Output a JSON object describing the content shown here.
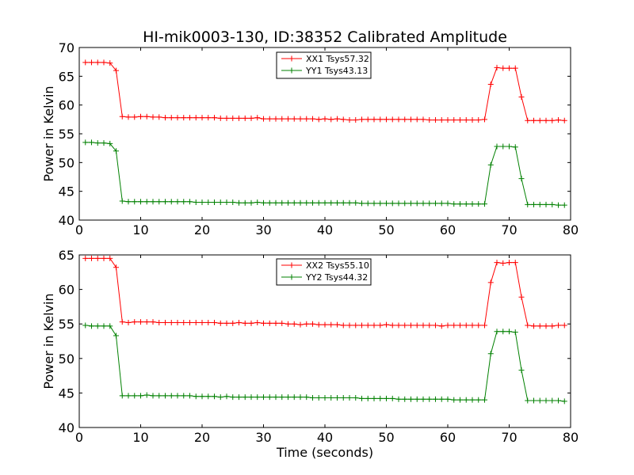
{
  "figure": {
    "title": "HI-mik0003-130, ID:38352 Calibrated Amplitude"
  },
  "chart_data": [
    {
      "type": "line",
      "title": "HI-mik0003-130, ID:38352 Calibrated Amplitude",
      "xlabel": "",
      "ylabel": "Power in Kelvin",
      "xlim": [
        0,
        80
      ],
      "ylim": [
        40,
        70
      ],
      "xticks": [
        0,
        10,
        20,
        30,
        40,
        50,
        60,
        70,
        80
      ],
      "yticks": [
        40,
        45,
        50,
        55,
        60,
        65,
        70
      ],
      "legend_position": "top-center",
      "grid": false,
      "series": [
        {
          "name": "XX1 Tsys57.32",
          "color": "#ff0000",
          "x": [
            1,
            2,
            3,
            4,
            5,
            6,
            7,
            8,
            9,
            10,
            11,
            12,
            13,
            14,
            15,
            16,
            17,
            18,
            19,
            20,
            21,
            22,
            23,
            24,
            25,
            26,
            27,
            28,
            29,
            30,
            31,
            32,
            33,
            34,
            35,
            36,
            37,
            38,
            39,
            40,
            41,
            42,
            43,
            44,
            45,
            46,
            47,
            48,
            49,
            50,
            51,
            52,
            53,
            54,
            55,
            56,
            57,
            58,
            59,
            60,
            61,
            62,
            63,
            64,
            65,
            66,
            67,
            68,
            69,
            70,
            71,
            72,
            73,
            74,
            75,
            76,
            77,
            78,
            79
          ],
          "y": [
            67.4,
            67.4,
            67.4,
            67.4,
            67.3,
            66.0,
            58.0,
            57.9,
            57.9,
            58.0,
            58.0,
            57.9,
            57.9,
            57.8,
            57.8,
            57.8,
            57.8,
            57.8,
            57.8,
            57.8,
            57.8,
            57.8,
            57.7,
            57.7,
            57.7,
            57.7,
            57.7,
            57.7,
            57.8,
            57.6,
            57.6,
            57.6,
            57.6,
            57.6,
            57.6,
            57.6,
            57.6,
            57.6,
            57.5,
            57.6,
            57.5,
            57.6,
            57.5,
            57.4,
            57.4,
            57.5,
            57.5,
            57.5,
            57.5,
            57.5,
            57.5,
            57.5,
            57.5,
            57.5,
            57.5,
            57.5,
            57.4,
            57.4,
            57.4,
            57.4,
            57.4,
            57.4,
            57.4,
            57.4,
            57.4,
            57.5,
            63.6,
            66.5,
            66.4,
            66.4,
            66.4,
            61.4,
            57.3,
            57.3,
            57.3,
            57.3,
            57.3,
            57.4,
            57.3
          ]
        },
        {
          "name": "YY1 Tsys43.13",
          "color": "#008000",
          "x": [
            1,
            2,
            3,
            4,
            5,
            6,
            7,
            8,
            9,
            10,
            11,
            12,
            13,
            14,
            15,
            16,
            17,
            18,
            19,
            20,
            21,
            22,
            23,
            24,
            25,
            26,
            27,
            28,
            29,
            30,
            31,
            32,
            33,
            34,
            35,
            36,
            37,
            38,
            39,
            40,
            41,
            42,
            43,
            44,
            45,
            46,
            47,
            48,
            49,
            50,
            51,
            52,
            53,
            54,
            55,
            56,
            57,
            58,
            59,
            60,
            61,
            62,
            63,
            64,
            65,
            66,
            67,
            68,
            69,
            70,
            71,
            72,
            73,
            74,
            75,
            76,
            77,
            78,
            79
          ],
          "y": [
            53.5,
            53.5,
            53.4,
            53.4,
            53.3,
            52.0,
            43.3,
            43.2,
            43.2,
            43.2,
            43.2,
            43.2,
            43.2,
            43.2,
            43.2,
            43.2,
            43.2,
            43.2,
            43.1,
            43.1,
            43.1,
            43.1,
            43.1,
            43.1,
            43.1,
            43.0,
            43.0,
            43.0,
            43.1,
            43.0,
            43.0,
            43.0,
            43.0,
            43.0,
            43.0,
            43.0,
            43.0,
            43.0,
            43.0,
            43.0,
            43.0,
            43.0,
            43.0,
            43.0,
            43.0,
            42.9,
            42.9,
            42.9,
            42.9,
            42.9,
            42.9,
            42.9,
            42.9,
            42.9,
            42.9,
            42.9,
            42.9,
            42.9,
            42.9,
            42.9,
            42.8,
            42.8,
            42.8,
            42.8,
            42.8,
            42.8,
            49.6,
            52.8,
            52.8,
            52.8,
            52.7,
            47.2,
            42.7,
            42.7,
            42.7,
            42.7,
            42.7,
            42.6,
            42.6
          ]
        }
      ]
    },
    {
      "type": "line",
      "title": "",
      "xlabel": "Time (seconds)",
      "ylabel": "Power in Kelvin",
      "xlim": [
        0,
        80
      ],
      "ylim": [
        40,
        65
      ],
      "xticks": [
        0,
        10,
        20,
        30,
        40,
        50,
        60,
        70,
        80
      ],
      "yticks": [
        40,
        45,
        50,
        55,
        60,
        65
      ],
      "legend_position": "top-center",
      "grid": false,
      "series": [
        {
          "name": "XX2 Tsys55.10",
          "color": "#ff0000",
          "x": [
            1,
            2,
            3,
            4,
            5,
            6,
            7,
            8,
            9,
            10,
            11,
            12,
            13,
            14,
            15,
            16,
            17,
            18,
            19,
            20,
            21,
            22,
            23,
            24,
            25,
            26,
            27,
            28,
            29,
            30,
            31,
            32,
            33,
            34,
            35,
            36,
            37,
            38,
            39,
            40,
            41,
            42,
            43,
            44,
            45,
            46,
            47,
            48,
            49,
            50,
            51,
            52,
            53,
            54,
            55,
            56,
            57,
            58,
            59,
            60,
            61,
            62,
            63,
            64,
            65,
            66,
            67,
            68,
            69,
            70,
            71,
            72,
            73,
            74,
            75,
            76,
            77,
            78,
            79
          ],
          "y": [
            64.5,
            64.5,
            64.5,
            64.5,
            64.5,
            63.2,
            55.3,
            55.2,
            55.3,
            55.3,
            55.3,
            55.3,
            55.2,
            55.2,
            55.2,
            55.2,
            55.2,
            55.2,
            55.2,
            55.2,
            55.2,
            55.2,
            55.1,
            55.1,
            55.1,
            55.2,
            55.1,
            55.1,
            55.2,
            55.1,
            55.1,
            55.1,
            55.1,
            55.0,
            55.0,
            54.9,
            55.0,
            55.0,
            54.9,
            54.9,
            54.9,
            54.9,
            54.8,
            54.8,
            54.8,
            54.8,
            54.8,
            54.8,
            54.8,
            54.9,
            54.8,
            54.8,
            54.8,
            54.8,
            54.8,
            54.8,
            54.8,
            54.8,
            54.7,
            54.8,
            54.8,
            54.8,
            54.8,
            54.8,
            54.8,
            54.8,
            61.0,
            63.9,
            63.8,
            63.9,
            63.9,
            58.9,
            54.8,
            54.7,
            54.7,
            54.7,
            54.7,
            54.8,
            54.8
          ]
        },
        {
          "name": "YY2 Tsys44.32",
          "color": "#008000",
          "x": [
            1,
            2,
            3,
            4,
            5,
            6,
            7,
            8,
            9,
            10,
            11,
            12,
            13,
            14,
            15,
            16,
            17,
            18,
            19,
            20,
            21,
            22,
            23,
            24,
            25,
            26,
            27,
            28,
            29,
            30,
            31,
            32,
            33,
            34,
            35,
            36,
            37,
            38,
            39,
            40,
            41,
            42,
            43,
            44,
            45,
            46,
            47,
            48,
            49,
            50,
            51,
            52,
            53,
            54,
            55,
            56,
            57,
            58,
            59,
            60,
            61,
            62,
            63,
            64,
            65,
            66,
            67,
            68,
            69,
            70,
            71,
            72,
            73,
            74,
            75,
            76,
            77,
            78,
            79
          ],
          "y": [
            54.8,
            54.7,
            54.7,
            54.7,
            54.7,
            53.3,
            44.6,
            44.6,
            44.6,
            44.6,
            44.7,
            44.6,
            44.6,
            44.6,
            44.6,
            44.6,
            44.6,
            44.6,
            44.5,
            44.5,
            44.5,
            44.5,
            44.4,
            44.5,
            44.4,
            44.4,
            44.4,
            44.4,
            44.4,
            44.4,
            44.4,
            44.4,
            44.4,
            44.4,
            44.4,
            44.4,
            44.4,
            44.3,
            44.3,
            44.3,
            44.3,
            44.3,
            44.3,
            44.3,
            44.3,
            44.2,
            44.2,
            44.2,
            44.2,
            44.2,
            44.2,
            44.1,
            44.1,
            44.1,
            44.1,
            44.1,
            44.1,
            44.1,
            44.1,
            44.1,
            44.0,
            44.0,
            44.0,
            44.0,
            44.0,
            44.0,
            50.7,
            53.9,
            53.9,
            53.9,
            53.8,
            48.3,
            43.9,
            43.9,
            43.9,
            43.9,
            43.9,
            43.9,
            43.8
          ]
        }
      ]
    }
  ]
}
